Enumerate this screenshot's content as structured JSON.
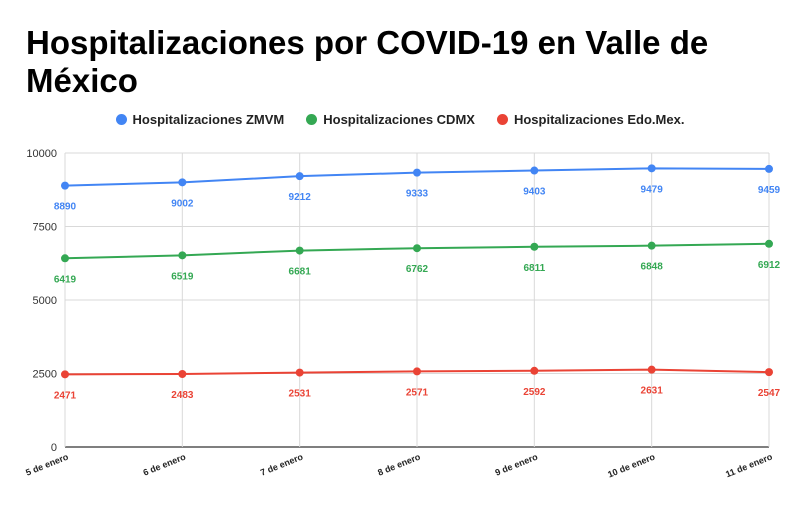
{
  "chart_data": {
    "type": "line",
    "title": "Hospitalizaciones por COVID-19 en Valle de México",
    "categories": [
      "5 de enero",
      "6 de enero",
      "7 de enero",
      "8 de enero",
      "9 de enero",
      "10 de enero",
      "11 de enero"
    ],
    "ylim": [
      0,
      10000
    ],
    "yticks": [
      0,
      2500,
      5000,
      7500,
      10000
    ],
    "grid": true,
    "legend_position": "top",
    "series": [
      {
        "name": "Hospitalizaciones ZMVM",
        "color": "#4285f4",
        "values": [
          8890,
          9002,
          9212,
          9333,
          9403,
          9479,
          9459
        ]
      },
      {
        "name": "Hospitalizaciones CDMX",
        "color": "#34a853",
        "values": [
          6419,
          6519,
          6681,
          6762,
          6811,
          6848,
          6912
        ]
      },
      {
        "name": "Hospitalizaciones Edo.Mex.",
        "color": "#ea4335",
        "values": [
          2471,
          2483,
          2531,
          2571,
          2592,
          2631,
          2547
        ]
      }
    ]
  }
}
